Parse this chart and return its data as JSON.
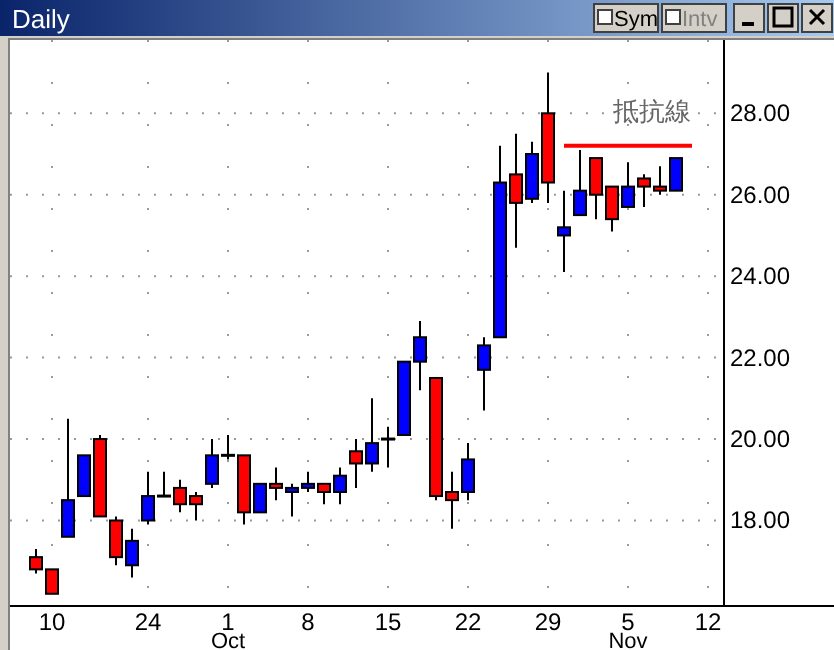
{
  "chart_data": {
    "type": "candlestick",
    "title": "Daily",
    "categories": [
      null,
      "10",
      null,
      null,
      null,
      null,
      null,
      "24",
      null,
      null,
      null,
      null,
      "1\nOct",
      null,
      null,
      null,
      null,
      "8",
      null,
      null,
      null,
      null,
      "15",
      null,
      null,
      null,
      null,
      "22",
      null,
      null,
      null,
      null,
      "29",
      null,
      null,
      null,
      null,
      "5\nNov",
      null,
      null,
      null,
      null,
      "12"
    ],
    "ohlc": [
      [
        17.1,
        17.3,
        16.7,
        16.8
      ],
      [
        16.8,
        16.8,
        16.2,
        16.2
      ],
      [
        17.6,
        20.5,
        17.6,
        18.5
      ],
      [
        18.6,
        19.6,
        18.6,
        19.6
      ],
      [
        20.0,
        20.1,
        18.1,
        18.1
      ],
      [
        18.0,
        18.1,
        16.9,
        17.1
      ],
      [
        16.9,
        17.8,
        16.6,
        17.5
      ],
      [
        18.0,
        19.2,
        17.9,
        18.6
      ],
      [
        18.6,
        19.2,
        18.6,
        18.6
      ],
      [
        18.8,
        19.0,
        18.2,
        18.4
      ],
      [
        18.6,
        18.7,
        18.0,
        18.4
      ],
      [
        18.9,
        20.0,
        18.8,
        19.6
      ],
      [
        19.6,
        20.1,
        19.5,
        19.6
      ],
      [
        19.6,
        19.6,
        17.9,
        18.2
      ],
      [
        18.2,
        18.9,
        18.2,
        18.9
      ],
      [
        18.9,
        19.3,
        18.5,
        18.8
      ],
      [
        18.7,
        18.9,
        18.1,
        18.8
      ],
      [
        18.8,
        19.2,
        18.7,
        18.9
      ],
      [
        18.9,
        18.9,
        18.4,
        18.7
      ],
      [
        18.7,
        19.3,
        18.4,
        19.1
      ],
      [
        19.7,
        20.0,
        18.8,
        19.4
      ],
      [
        19.4,
        21.0,
        19.2,
        19.9
      ],
      [
        20.0,
        20.3,
        19.3,
        20.0
      ],
      [
        20.1,
        21.9,
        20.1,
        21.9
      ],
      [
        21.9,
        22.9,
        21.2,
        22.5
      ],
      [
        21.5,
        21.5,
        18.5,
        18.6
      ],
      [
        18.7,
        19.2,
        17.8,
        18.5
      ],
      [
        18.7,
        19.9,
        18.5,
        19.5
      ],
      [
        21.7,
        22.5,
        20.7,
        22.3
      ],
      [
        22.5,
        27.2,
        22.5,
        26.3
      ],
      [
        26.5,
        27.5,
        24.7,
        25.8
      ],
      [
        25.9,
        27.3,
        25.8,
        27.0
      ],
      [
        28.0,
        29.0,
        25.8,
        26.3
      ],
      [
        25.0,
        26.1,
        24.1,
        25.2
      ],
      [
        25.5,
        27.1,
        25.5,
        26.1
      ],
      [
        26.9,
        26.9,
        25.4,
        26.0
      ],
      [
        26.2,
        26.2,
        25.1,
        25.4
      ],
      [
        25.7,
        26.8,
        25.7,
        26.2
      ],
      [
        26.4,
        26.5,
        25.7,
        26.2
      ],
      [
        26.2,
        26.7,
        26.0,
        26.1
      ],
      [
        26.1,
        26.9,
        26.1,
        26.9
      ],
      null,
      null
    ],
    "colors": [
      "#ff0000",
      "#ff0000",
      "#0000ff",
      "#0000ff",
      "#ff0000",
      "#ff0000",
      "#0000ff",
      "#0000ff",
      "#000000",
      "#ff0000",
      "#ff0000",
      "#0000ff",
      "#000000",
      "#ff0000",
      "#0000ff",
      "#ff0000",
      "#0000ff",
      "#0000ff",
      "#ff0000",
      "#0000ff",
      "#ff0000",
      "#0000ff",
      "#000000",
      "#0000ff",
      "#0000ff",
      "#ff0000",
      "#ff0000",
      "#0000ff",
      "#0000ff",
      "#0000ff",
      "#ff0000",
      "#0000ff",
      "#ff0000",
      "#0000ff",
      "#0000ff",
      "#ff0000",
      "#ff0000",
      "#0000ff",
      "#ff0000",
      "#ff0000",
      "#0000ff",
      null,
      null
    ],
    "series": [
      {
        "name": "抵抗線",
        "type": "line",
        "color": "#ff0000",
        "values": [
          null,
          null,
          null,
          null,
          null,
          null,
          null,
          null,
          null,
          null,
          null,
          null,
          null,
          null,
          null,
          null,
          null,
          null,
          null,
          null,
          null,
          null,
          null,
          null,
          null,
          null,
          null,
          null,
          null,
          null,
          null,
          null,
          null,
          27.2,
          27.2,
          27.2,
          27.2,
          27.2,
          27.2,
          27.2,
          27.2,
          27.2,
          null
        ]
      }
    ],
    "ylim": [
      15.9,
      29.8
    ],
    "yticks": [
      {
        "value": 18,
        "label": "18.00"
      },
      {
        "value": 20,
        "label": "20.00"
      },
      {
        "value": 22,
        "label": "22.00"
      },
      {
        "value": 24,
        "label": "24.00"
      },
      {
        "value": 26,
        "label": "26.00"
      },
      {
        "value": 28,
        "label": "28.00"
      }
    ],
    "grid": true,
    "annotations": [
      "Sym",
      "Intv"
    ]
  }
}
